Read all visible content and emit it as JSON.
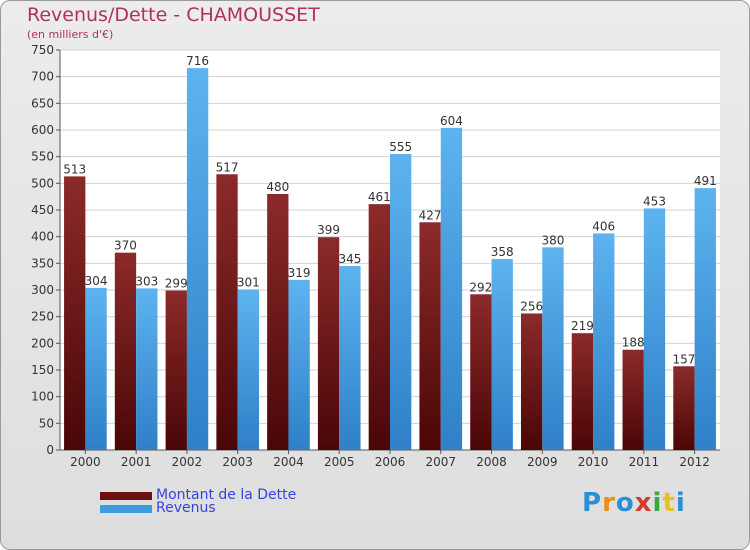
{
  "header": {
    "title": "Revenus/Dette - CHAMOUSSET",
    "subtitle": "(en milliers d'€)"
  },
  "chart_data": {
    "type": "bar",
    "title": "Revenus/Dette - CHAMOUSSET",
    "ylabel": "(en milliers d'€)",
    "xlabel": "",
    "categories": [
      "2000",
      "2001",
      "2002",
      "2003",
      "2004",
      "2005",
      "2006",
      "2007",
      "2008",
      "2009",
      "2010",
      "2011",
      "2012"
    ],
    "series": [
      {
        "name": "Montant de la Dette",
        "color": "#7a1b1b",
        "values": [
          513,
          370,
          299,
          517,
          480,
          399,
          461,
          427,
          292,
          256,
          219,
          188,
          157
        ]
      },
      {
        "name": "Revenus",
        "color": "#4aa3e4",
        "values": [
          304,
          303,
          716,
          301,
          319,
          345,
          555,
          604,
          358,
          380,
          406,
          453,
          491
        ]
      }
    ],
    "ylim": [
      0,
      750
    ],
    "yticks": [
      0,
      50,
      100,
      150,
      200,
      250,
      300,
      350,
      400,
      450,
      500,
      550,
      600,
      650,
      700,
      750
    ],
    "grid": true,
    "legend_position": "bottom-left"
  },
  "legend": {
    "items": [
      {
        "label": "Montant de la Dette",
        "color": "#6b0f0f"
      },
      {
        "label": "Revenus",
        "color": "#3d9be0"
      }
    ]
  },
  "brand": {
    "letters": [
      "P",
      "r",
      "o",
      "x",
      "i",
      "t",
      "i"
    ],
    "colors": [
      "#2a8fd6",
      "#e8901a",
      "#2a8fd6",
      "#d43c2a",
      "#3aa83a",
      "#e8c21a",
      "#2a8fd6"
    ]
  }
}
